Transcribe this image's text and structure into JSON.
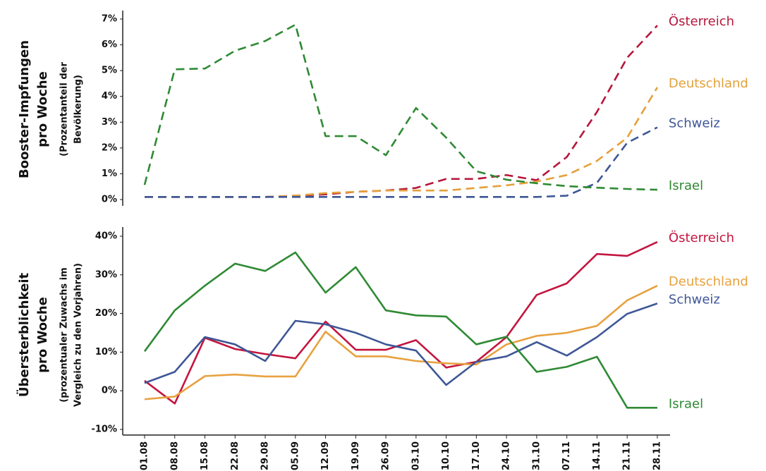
{
  "chart_data": [
    {
      "type": "line",
      "style": "dashed",
      "ylabel": [
        "Booster-Impfungen",
        "pro Woche"
      ],
      "ylabel_sub": [
        "(Prozentanteil der",
        "Bevölkerung)"
      ],
      "ylim": [
        0,
        7
      ],
      "yticks": [
        {
          "value": 0,
          "label": "0%"
        },
        {
          "value": 1,
          "label": "1%"
        },
        {
          "value": 2,
          "label": "2%"
        },
        {
          "value": 3,
          "label": "3%"
        },
        {
          "value": 4,
          "label": "4%"
        },
        {
          "value": 5,
          "label": "5%"
        },
        {
          "value": 6,
          "label": "6%"
        },
        {
          "value": 7,
          "label": "7%"
        }
      ],
      "series": [
        {
          "name": "Österreich",
          "color": "#b5173c",
          "values": [
            0.1,
            0.1,
            0.1,
            0.1,
            0.1,
            0.15,
            0.2,
            0.3,
            0.35,
            0.45,
            0.8,
            0.8,
            0.95,
            0.75,
            1.65,
            3.4,
            5.5,
            6.75
          ]
        },
        {
          "name": "Deutschland",
          "color": "#e3a13b",
          "values": [
            0.1,
            0.1,
            0.1,
            0.1,
            0.1,
            0.15,
            0.25,
            0.3,
            0.35,
            0.35,
            0.35,
            0.45,
            0.55,
            0.7,
            0.95,
            1.5,
            2.4,
            4.35
          ]
        },
        {
          "name": "Schweiz",
          "color": "#3e5796",
          "values": [
            0.1,
            0.1,
            0.1,
            0.1,
            0.1,
            0.1,
            0.1,
            0.1,
            0.1,
            0.1,
            0.1,
            0.1,
            0.1,
            0.1,
            0.15,
            0.65,
            2.2,
            2.8
          ]
        },
        {
          "name": "Israel",
          "color": "#2f8a34",
          "values": [
            0.57,
            5.05,
            5.08,
            5.77,
            6.15,
            6.78,
            2.46,
            2.46,
            1.72,
            3.55,
            2.4,
            1.1,
            0.77,
            0.63,
            0.52,
            0.46,
            0.41,
            0.38
          ]
        }
      ]
    },
    {
      "type": "line",
      "style": "solid",
      "ylabel": [
        "Übersterblichkeit",
        "pro Woche"
      ],
      "ylabel_sub": [
        "(prozentualer Zuwachs im",
        "Vergleich zu den Vorjahren)"
      ],
      "categories": [
        "01.08",
        "08.08",
        "15.08",
        "22.08",
        "29.08",
        "05.09",
        "12.09",
        "19.09",
        "26.09",
        "03.10",
        "10.10",
        "17.10",
        "24.10",
        "31.10",
        "07.11",
        "14.11",
        "21.11",
        "28.11"
      ],
      "ylim": [
        -10,
        40
      ],
      "yticks": [
        {
          "value": -10,
          "label": "-10%"
        },
        {
          "value": 0,
          "label": "0%"
        },
        {
          "value": 10,
          "label": "10%"
        },
        {
          "value": 20,
          "label": "20%"
        },
        {
          "value": 30,
          "label": "30%"
        },
        {
          "value": 40,
          "label": "40%"
        }
      ],
      "series": [
        {
          "name": "Österreich",
          "color": "#c4153f",
          "values": [
            2.6,
            -3.3,
            13.7,
            10.8,
            9.5,
            8.4,
            17.9,
            10.6,
            10.6,
            13.1,
            6,
            7.5,
            13.9,
            24.8,
            27.8,
            35.4,
            34.9,
            38.5
          ]
        },
        {
          "name": "Deutschland",
          "color": "#e8a13f",
          "values": [
            -2.2,
            -1.5,
            3.8,
            4.2,
            3.7,
            3.7,
            15.3,
            8.9,
            8.9,
            7.7,
            7.1,
            6.8,
            12,
            14.2,
            15,
            16.8,
            23.4,
            27.2
          ]
        },
        {
          "name": "Schweiz",
          "color": "#3e5796",
          "values": [
            2,
            4.9,
            13.9,
            12,
            7.7,
            18.1,
            17.2,
            15,
            12,
            10.4,
            1.5,
            7.5,
            8.9,
            12.6,
            9.1,
            13.9,
            19.9,
            22.6
          ]
        },
        {
          "name": "Israel",
          "color": "#2f8a34",
          "values": [
            10.2,
            20.8,
            27.2,
            32.9,
            31,
            35.8,
            25.4,
            32,
            20.8,
            19.5,
            19.2,
            12,
            14,
            4.9,
            6.2,
            8.8,
            -4.4,
            -4.4
          ]
        }
      ]
    }
  ]
}
